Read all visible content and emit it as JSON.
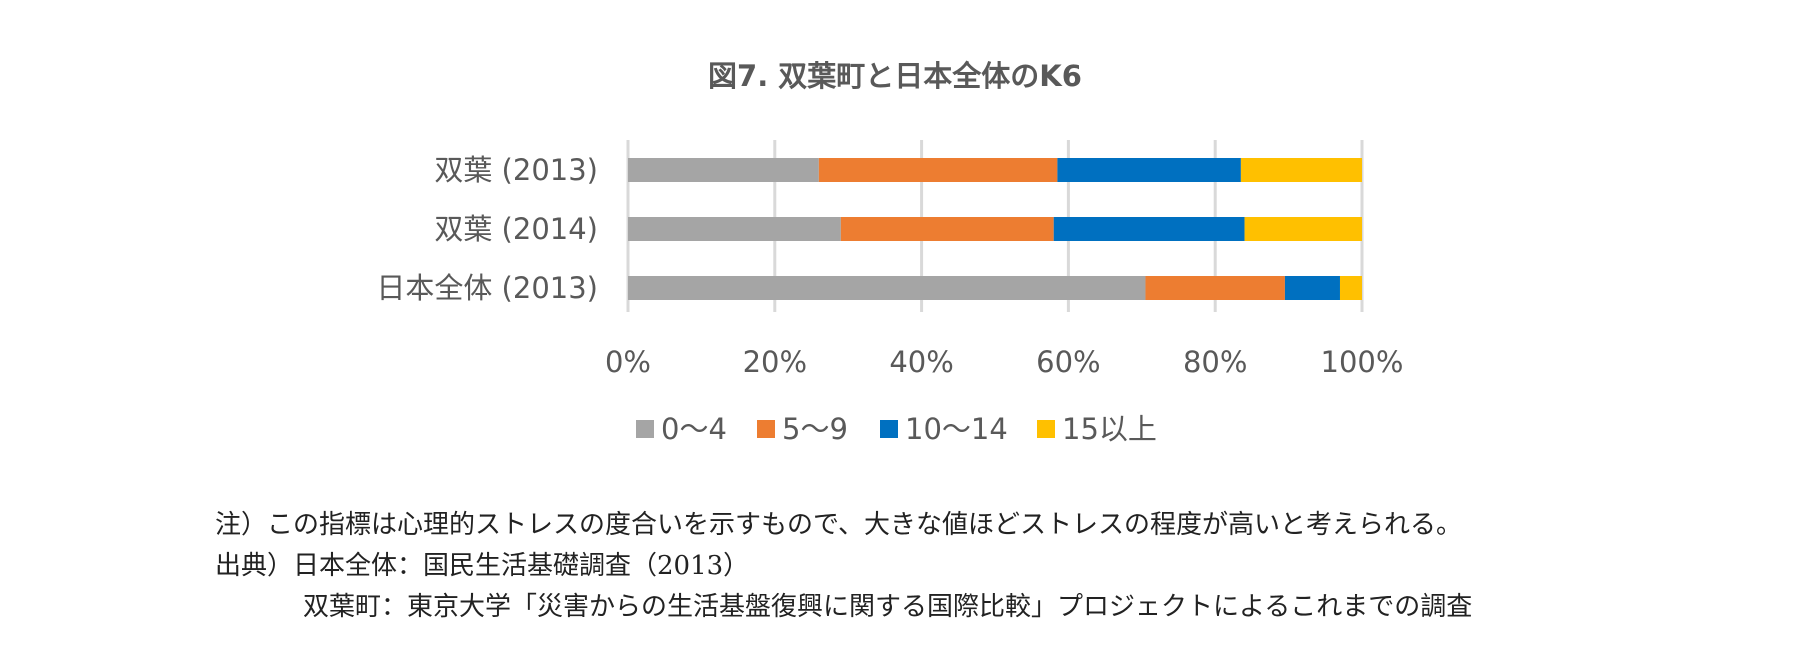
{
  "chart_data": {
    "type": "bar",
    "orientation": "horizontal",
    "stacked": "percent",
    "title": "図7. 双葉町と日本全体のK6",
    "categories": [
      "双葉 (2013)",
      "双葉 (2014)",
      "日本全体 (2013)"
    ],
    "series": [
      {
        "name": "0～4",
        "color": "#a5a5a5",
        "values": [
          26,
          29,
          70.5
        ]
      },
      {
        "name": "5～9",
        "color": "#ed7d31",
        "values": [
          32.5,
          29,
          19
        ]
      },
      {
        "name": "10～14",
        "color": "#0070c0",
        "values": [
          25,
          26,
          7.5
        ]
      },
      {
        "name": "15以上",
        "color": "#ffc000",
        "values": [
          16.5,
          16,
          3
        ]
      }
    ],
    "xlim": [
      0,
      100
    ],
    "x_ticks": [
      "0%",
      "20%",
      "40%",
      "60%",
      "80%",
      "100%"
    ],
    "grid": true,
    "legend": "bottom"
  },
  "notes": {
    "note": "注）この指標は心理的ストレスの度合いを示すもので、大きな値ほどストレスの程度が高いと考えられる。",
    "source_japan": "出典）日本全体：国民生活基礎調査（2013）",
    "source_futaba": "双葉町：東京大学「災害からの生活基盤復興に関する国際比較」プロジェクトによるこれまでの調査"
  }
}
